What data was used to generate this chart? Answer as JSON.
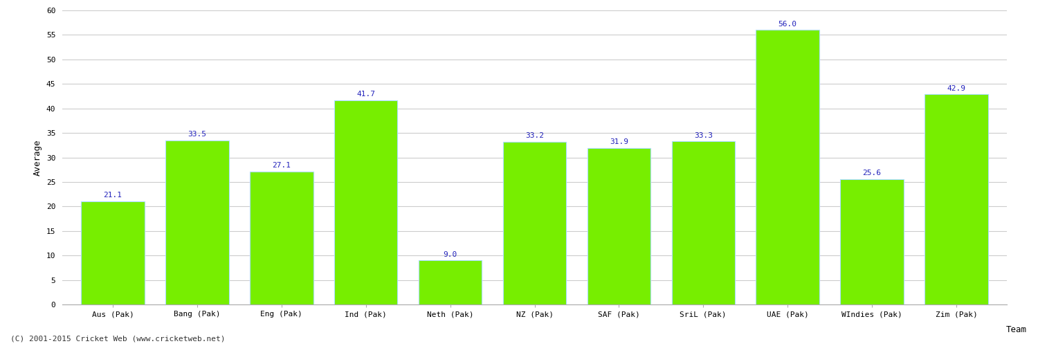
{
  "categories": [
    "Aus (Pak)",
    "Bang (Pak)",
    "Eng (Pak)",
    "Ind (Pak)",
    "Neth (Pak)",
    "NZ (Pak)",
    "SAF (Pak)",
    "SriL (Pak)",
    "UAE (Pak)",
    "WIndies (Pak)",
    "Zim (Pak)"
  ],
  "values": [
    21.1,
    33.5,
    27.1,
    41.7,
    9.0,
    33.2,
    31.9,
    33.3,
    56.0,
    25.6,
    42.9
  ],
  "bar_color": "#77ee00",
  "bar_edge_color": "#aaddff",
  "value_label_color": "#2222bb",
  "xlabel": "Team",
  "ylabel": "Average",
  "ylim": [
    0,
    60
  ],
  "yticks": [
    0,
    5,
    10,
    15,
    20,
    25,
    30,
    35,
    40,
    45,
    50,
    55,
    60
  ],
  "grid_color": "#cccccc",
  "background_color": "#ffffff",
  "footer_text": "(C) 2001-2015 Cricket Web (www.cricketweb.net)",
  "axis_label_fontsize": 9,
  "tick_fontsize": 8,
  "value_label_fontsize": 8,
  "footer_fontsize": 8
}
